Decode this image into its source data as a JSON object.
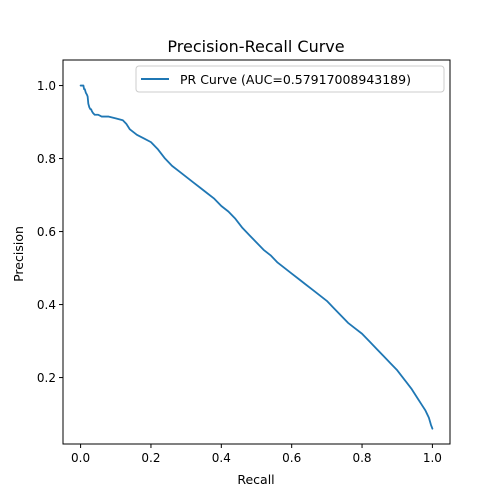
{
  "chart_data": {
    "type": "line",
    "title": "Precision-Recall Curve",
    "xlabel": "Recall",
    "ylabel": "Precision",
    "xlim": [
      -0.05,
      1.05
    ],
    "ylim": [
      0.018,
      1.07
    ],
    "xticks": [
      0.0,
      0.2,
      0.4,
      0.6,
      0.8,
      1.0
    ],
    "yticks": [
      0.2,
      0.4,
      0.6,
      0.8,
      1.0
    ],
    "xtick_labels": [
      "0.0",
      "0.2",
      "0.4",
      "0.6",
      "0.8",
      "1.0"
    ],
    "ytick_labels": [
      "0.2",
      "0.4",
      "0.6",
      "0.8",
      "1.0"
    ],
    "grid": false,
    "legend_position": "upper-right",
    "series": [
      {
        "name": "PR Curve (AUC=0.57917008943189)",
        "color": "#1f77b4",
        "x": [
          0.0,
          0.005,
          0.008,
          0.01,
          0.012,
          0.015,
          0.018,
          0.02,
          0.022,
          0.025,
          0.028,
          0.03,
          0.032,
          0.035,
          0.04,
          0.05,
          0.06,
          0.08,
          0.1,
          0.12,
          0.13,
          0.14,
          0.16,
          0.18,
          0.2,
          0.22,
          0.24,
          0.26,
          0.28,
          0.3,
          0.32,
          0.34,
          0.36,
          0.38,
          0.4,
          0.42,
          0.44,
          0.46,
          0.48,
          0.5,
          0.52,
          0.54,
          0.56,
          0.58,
          0.6,
          0.62,
          0.64,
          0.66,
          0.68,
          0.7,
          0.72,
          0.74,
          0.76,
          0.78,
          0.8,
          0.82,
          0.84,
          0.86,
          0.88,
          0.9,
          0.92,
          0.94,
          0.95,
          0.96,
          0.97,
          0.98,
          0.985,
          0.99,
          0.993,
          0.996,
          0.998,
          1.0
        ],
        "y": [
          1.0,
          1.0,
          1.0,
          0.99,
          0.99,
          0.98,
          0.975,
          0.97,
          0.95,
          0.94,
          0.935,
          0.935,
          0.93,
          0.925,
          0.92,
          0.92,
          0.915,
          0.915,
          0.91,
          0.905,
          0.895,
          0.88,
          0.865,
          0.855,
          0.845,
          0.825,
          0.8,
          0.78,
          0.765,
          0.75,
          0.735,
          0.72,
          0.705,
          0.69,
          0.67,
          0.655,
          0.635,
          0.61,
          0.59,
          0.57,
          0.55,
          0.535,
          0.515,
          0.5,
          0.485,
          0.47,
          0.455,
          0.44,
          0.425,
          0.41,
          0.39,
          0.37,
          0.35,
          0.335,
          0.32,
          0.3,
          0.28,
          0.26,
          0.24,
          0.22,
          0.195,
          0.17,
          0.155,
          0.14,
          0.125,
          0.11,
          0.1,
          0.09,
          0.08,
          0.07,
          0.065,
          0.06
        ]
      }
    ]
  }
}
